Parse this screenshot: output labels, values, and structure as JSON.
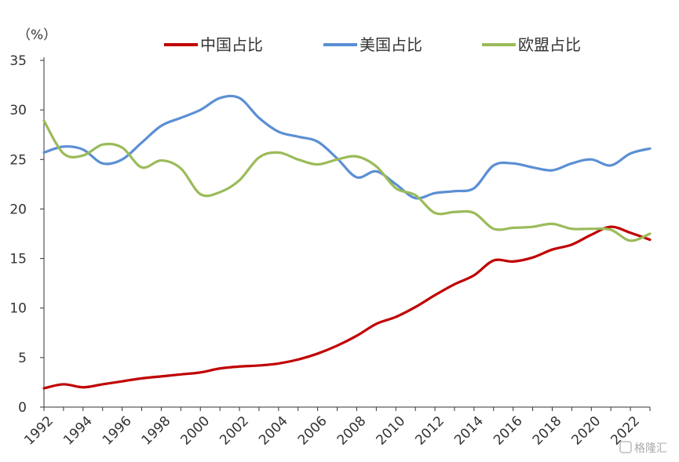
{
  "chart_data": {
    "type": "line",
    "unit_label": "（%）",
    "x": [
      1992,
      1993,
      1994,
      1995,
      1996,
      1997,
      1998,
      1999,
      2000,
      2001,
      2002,
      2003,
      2004,
      2005,
      2006,
      2007,
      2008,
      2009,
      2010,
      2011,
      2012,
      2013,
      2014,
      2015,
      2016,
      2017,
      2018,
      2019,
      2020,
      2021,
      2022,
      2023
    ],
    "x_tick_labels": [
      "1992",
      "1994",
      "1996",
      "1998",
      "2000",
      "2002",
      "2004",
      "2006",
      "2008",
      "2010",
      "2012",
      "2014",
      "2016",
      "2018",
      "2020",
      "2022"
    ],
    "y_tick_labels": [
      "0",
      "5",
      "10",
      "15",
      "20",
      "25",
      "30",
      "35"
    ],
    "ylim": [
      0,
      35
    ],
    "xlim": [
      1992,
      2023
    ],
    "grid": false,
    "legend_position": "top",
    "series": [
      {
        "name": "中国占比",
        "color": "#C00000",
        "values": [
          1.9,
          2.3,
          2.0,
          2.3,
          2.6,
          2.9,
          3.1,
          3.3,
          3.5,
          3.9,
          4.1,
          4.2,
          4.4,
          4.8,
          5.4,
          6.2,
          7.2,
          8.4,
          9.1,
          10.1,
          11.3,
          12.4,
          13.3,
          14.8,
          14.7,
          15.1,
          15.9,
          16.4,
          17.4,
          18.2,
          17.6,
          16.9
        ]
      },
      {
        "name": "美国占比",
        "color": "#5B8FD4",
        "values": [
          25.7,
          26.3,
          26.0,
          24.6,
          25.0,
          26.7,
          28.4,
          29.2,
          30.0,
          31.2,
          31.2,
          29.2,
          27.8,
          27.3,
          26.8,
          25.1,
          23.2,
          23.8,
          22.5,
          21.1,
          21.6,
          21.8,
          22.1,
          24.4,
          24.6,
          24.2,
          23.9,
          24.6,
          25.0,
          24.4,
          25.6,
          26.1
        ]
      },
      {
        "name": "欧盟占比",
        "color": "#9BBB59",
        "values": [
          28.9,
          25.6,
          25.4,
          26.5,
          26.2,
          24.2,
          24.9,
          24.1,
          21.5,
          21.7,
          22.9,
          25.2,
          25.7,
          25.0,
          24.5,
          25.0,
          25.3,
          24.3,
          22.1,
          21.4,
          19.6,
          19.7,
          19.6,
          18.0,
          18.1,
          18.2,
          18.5,
          18.0,
          18.0,
          17.9,
          16.8,
          17.5
        ]
      }
    ]
  },
  "watermark": "格隆汇"
}
